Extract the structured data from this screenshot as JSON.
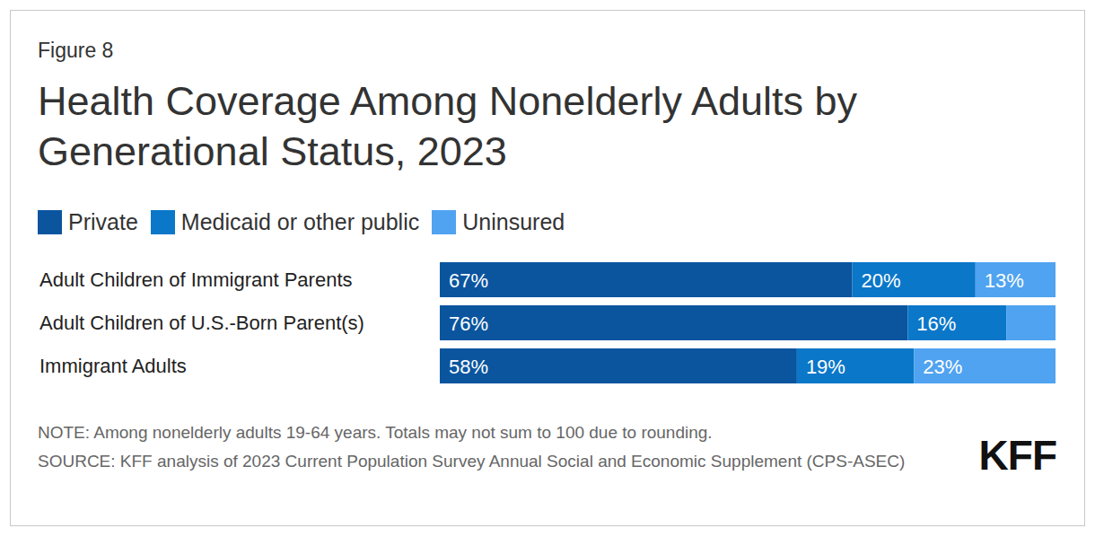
{
  "chart_data": {
    "type": "bar",
    "orientation": "horizontal",
    "stacked": true,
    "data_labels": true,
    "tick_labels": "y",
    "legend": "top",
    "figure_label": "Figure 8",
    "title": "Health Coverage Among Nonelderly Adults by Generational Status, 2023",
    "categories": [
      "Adult Children of Immigrant Parents",
      "Adult Children of U.S.-Born Parent(s)",
      "Immigrant Adults"
    ],
    "series": [
      {
        "name": "Private",
        "color": "#0b559f",
        "values": [
          67,
          76,
          58
        ],
        "value_labels": [
          "67%",
          "76%",
          "58%"
        ]
      },
      {
        "name": "Medicaid or other public",
        "color": "#0a77c9",
        "values": [
          20,
          16,
          19
        ],
        "value_labels": [
          "20%",
          "16%",
          "19%"
        ]
      },
      {
        "name": "Uninsured",
        "color": "#50a3f0",
        "values": [
          13,
          8,
          23
        ],
        "value_labels": [
          "13%",
          null,
          "23%"
        ]
      }
    ],
    "xlim": [
      0,
      100
    ],
    "note": "NOTE: Among nonelderly adults 19-64 years. Totals may not sum to 100 due to rounding.",
    "source": "SOURCE: KFF analysis of 2023 Current Population Survey Annual Social and Economic Supplement (CPS-ASEC)",
    "logo": "KFF"
  }
}
